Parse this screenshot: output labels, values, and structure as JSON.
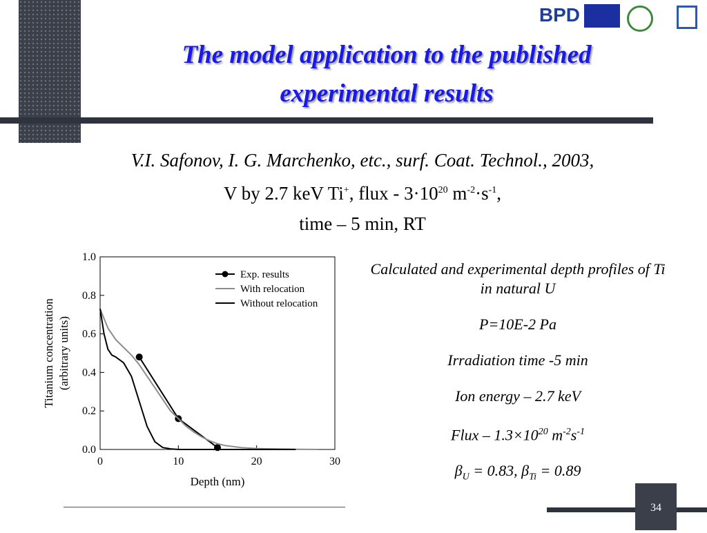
{
  "header": {
    "logo": "BPD",
    "title": "The model application to the published experimental results"
  },
  "citation": {
    "line1": "V.I. Safonov, I. G. Marchenko, etc., surf. Coat. Technol., 2003,",
    "line2": [
      "V by 2.7 keV Ti",
      "+",
      ", flux - 3·10",
      "20",
      " m",
      "-2",
      "·s",
      "-1",
      ","
    ],
    "line3": "time – 5 min,  RT"
  },
  "chart_data": {
    "type": "line",
    "xlabel": "Depth (nm)",
    "ylabel": [
      "Titanium concentration",
      "(arbitrary units)"
    ],
    "xlim": [
      0,
      30
    ],
    "xticks": [
      0,
      10,
      20,
      30
    ],
    "ylim": [
      0,
      1
    ],
    "yticks": [
      {
        "value": 0,
        "label": "0.0"
      },
      0.2,
      0.4,
      0.6,
      0.8,
      {
        "value": 1,
        "label": "1.0"
      }
    ],
    "legend": "upper right",
    "series": [
      {
        "name": "Exp. results",
        "color": "#000000",
        "markers": true,
        "x": [
          5,
          10,
          15
        ],
        "values": [
          0.48,
          0.16,
          0.01
        ]
      },
      {
        "name": "With relocation",
        "color": "#8c8c8c",
        "x": [
          0,
          1,
          2,
          3,
          4,
          5,
          6,
          7,
          8,
          9,
          10,
          11,
          12,
          13,
          14,
          15,
          16,
          18,
          20,
          22,
          25,
          28
        ],
        "values": [
          0.73,
          0.63,
          0.57,
          0.53,
          0.49,
          0.44,
          0.38,
          0.32,
          0.26,
          0.2,
          0.16,
          0.12,
          0.09,
          0.065,
          0.045,
          0.03,
          0.02,
          0.01,
          0.005,
          0.003,
          0.001,
          0
        ]
      },
      {
        "name": "Without relocation",
        "color": "#000000",
        "x": [
          0,
          0.5,
          1,
          1.5,
          2,
          3,
          4,
          5,
          6,
          7,
          8,
          9,
          10,
          12,
          15,
          20,
          25
        ],
        "values": [
          0.73,
          0.6,
          0.52,
          0.49,
          0.48,
          0.45,
          0.38,
          0.25,
          0.12,
          0.04,
          0.01,
          0.003,
          0,
          0,
          0,
          0,
          0
        ]
      }
    ]
  },
  "notes": [
    [
      "Calculated and experimental depth profiles of Ti  in natural U"
    ],
    [
      "P=10E-2 Pa"
    ],
    [
      "Irradiation time -5 min"
    ],
    [
      "Ion energy – 2.7 keV"
    ],
    [
      "Flux – 1.3×10",
      "20",
      " m",
      "-2",
      "s",
      "-1"
    ],
    [
      "β",
      "U",
      " = 0.83, β",
      "Ti",
      " = 0.89"
    ]
  ],
  "page_number": "34"
}
